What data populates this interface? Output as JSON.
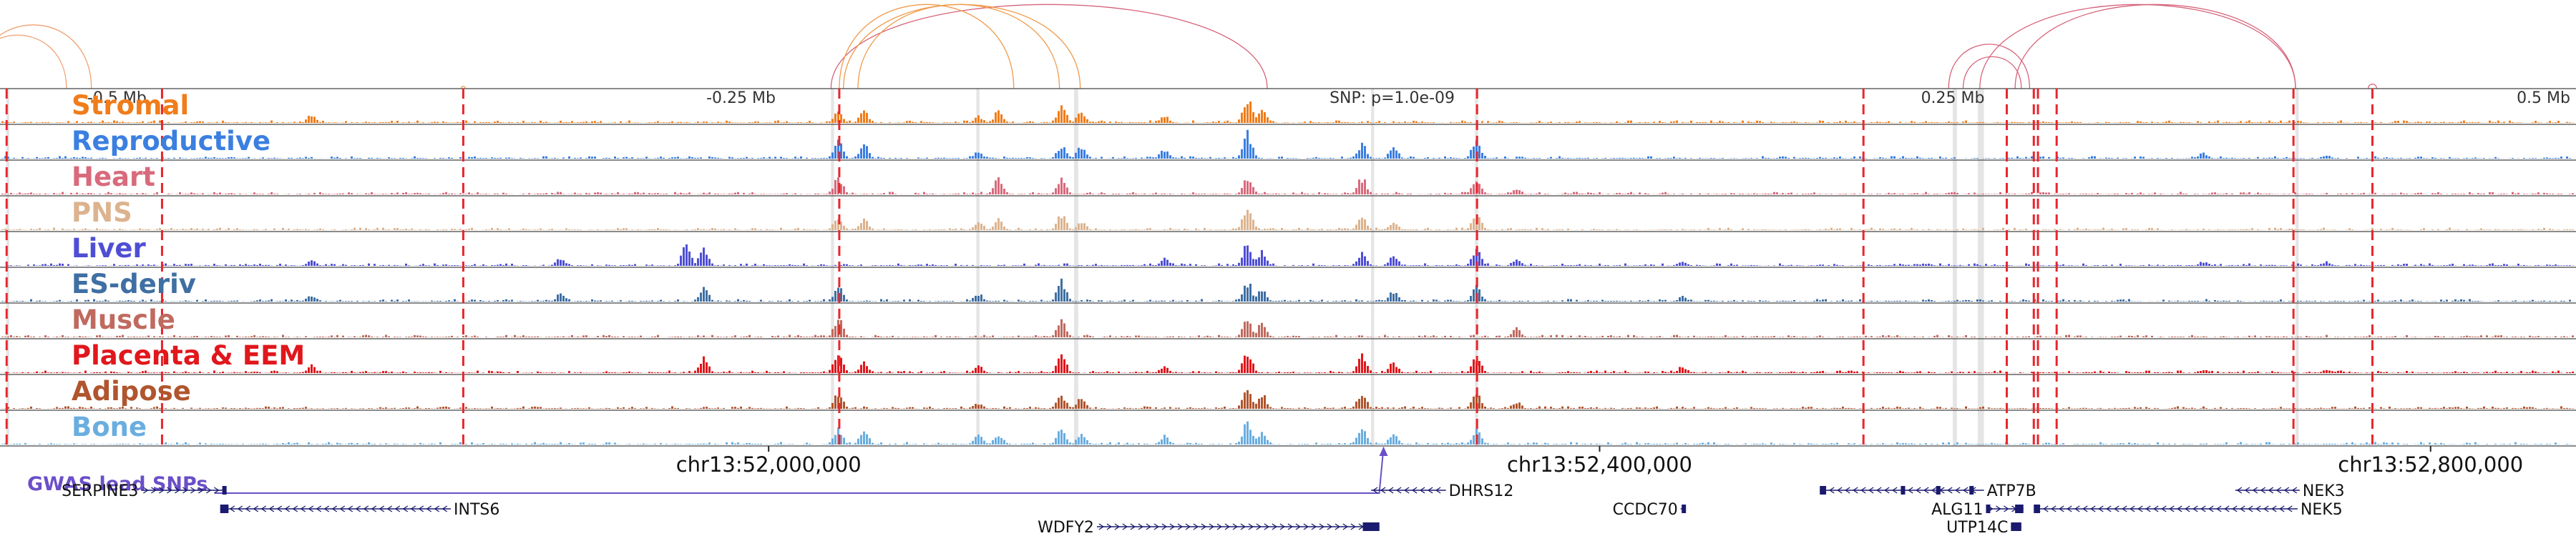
{
  "region": {
    "chrom": "chr13",
    "start": 51630000,
    "end": 52870000,
    "center": 52300000
  },
  "ruler": {
    "ticks": [
      {
        "pos": 51672000,
        "label": "-0.5 Mb",
        "anchor": "start"
      },
      {
        "pos": 51970000,
        "label": "-0.25 Mb",
        "anchor": "start"
      },
      {
        "pos": 52270000,
        "label": "SNP: p=1.0e-09",
        "anchor": "start"
      },
      {
        "pos": 52570000,
        "label": "0.25 Mb",
        "anchor": "middle"
      },
      {
        "pos": 52868000,
        "label": "0.5 Mb",
        "anchor": "end"
      }
    ]
  },
  "colors": {
    "loop": "#d6637a",
    "snp_line": "#e8262c",
    "highlight": "#cfcfcf",
    "gene": "#1a1a6e",
    "gwas": "#6a4fc8",
    "track_border": "#444444"
  },
  "tracks": [
    {
      "name": "Stromal",
      "color": "#f07d1a"
    },
    {
      "name": "Reproductive",
      "color": "#3b7fe0"
    },
    {
      "name": "Heart",
      "color": "#d86a7c"
    },
    {
      "name": "PNS",
      "color": "#dcb38e"
    },
    {
      "name": "Liver",
      "color": "#4e4ed4"
    },
    {
      "name": "ES-deriv",
      "color": "#3f6fa3"
    },
    {
      "name": "Muscle",
      "color": "#c06a5f"
    },
    {
      "name": "Placenta & EEM",
      "color": "#e0171c"
    },
    {
      "name": "Adipose",
      "color": "#b0552e"
    },
    {
      "name": "Bone",
      "color": "#6aaee0"
    }
  ],
  "peaks": [
    {
      "pos": 51780000,
      "h": 0.35,
      "tracks": [
        0,
        4,
        5,
        7
      ]
    },
    {
      "pos": 51900000,
      "h": 0.3,
      "tracks": [
        4,
        5
      ]
    },
    {
      "pos": 51960000,
      "h": 0.95,
      "tracks": [
        4
      ]
    },
    {
      "pos": 51968000,
      "h": 0.75,
      "tracks": [
        4,
        5,
        7
      ]
    },
    {
      "pos": 52033000,
      "h": 0.8,
      "tracks": [
        0,
        1,
        2,
        3,
        5,
        6,
        7,
        8,
        9
      ]
    },
    {
      "pos": 52045000,
      "h": 0.6,
      "tracks": [
        0,
        1,
        3,
        7,
        9
      ]
    },
    {
      "pos": 52100000,
      "h": 0.4,
      "tracks": [
        0,
        1,
        3,
        5,
        7,
        8,
        9
      ]
    },
    {
      "pos": 52110000,
      "h": 0.7,
      "tracks": [
        0,
        2,
        3,
        9
      ]
    },
    {
      "pos": 52140000,
      "h": 0.9,
      "tracks": [
        0,
        1,
        2,
        3,
        5,
        6,
        7,
        8,
        9
      ]
    },
    {
      "pos": 52150000,
      "h": 0.5,
      "tracks": [
        0,
        1,
        3,
        8,
        9
      ]
    },
    {
      "pos": 52190000,
      "h": 0.4,
      "tracks": [
        0,
        1,
        4,
        7,
        9
      ]
    },
    {
      "pos": 52230000,
      "h": 1.0,
      "tracks": [
        0,
        1,
        2,
        3,
        4,
        5,
        6,
        7,
        8,
        9
      ]
    },
    {
      "pos": 52237000,
      "h": 0.7,
      "tracks": [
        0,
        4,
        5,
        6,
        8,
        9
      ]
    },
    {
      "pos": 52285000,
      "h": 0.8,
      "tracks": [
        1,
        2,
        3,
        4,
        7,
        8,
        9
      ]
    },
    {
      "pos": 52300000,
      "h": 0.5,
      "tracks": [
        1,
        3,
        4,
        5,
        7,
        9
      ]
    },
    {
      "pos": 52340000,
      "h": 0.9,
      "tracks": [
        1,
        2,
        3,
        4,
        5,
        7,
        8,
        9
      ]
    },
    {
      "pos": 52360000,
      "h": 0.35,
      "tracks": [
        2,
        4,
        6,
        8
      ]
    },
    {
      "pos": 52440000,
      "h": 0.3,
      "tracks": [
        4,
        5,
        7
      ]
    },
    {
      "pos": 52690000,
      "h": 0.25,
      "tracks": [
        1,
        4,
        7
      ]
    },
    {
      "pos": 52750000,
      "h": 0.25,
      "tracks": [
        1,
        4,
        7
      ]
    }
  ],
  "highlight_regions": [
    {
      "start": 51633000,
      "end": 51634500
    },
    {
      "start": 52030000,
      "end": 52031500
    },
    {
      "start": 52100000,
      "end": 52101500
    },
    {
      "start": 52147000,
      "end": 52149000
    },
    {
      "start": 52290000,
      "end": 52291500
    },
    {
      "start": 52340000,
      "end": 52341500
    },
    {
      "start": 52570000,
      "end": 52572000
    },
    {
      "start": 52582000,
      "end": 52585000
    },
    {
      "start": 52735000,
      "end": 52736500
    }
  ],
  "snp_lines": [
    51633200,
    51708000,
    51853000,
    52034000,
    52341000,
    52527000,
    52596000,
    52609000,
    52611000,
    52620000,
    52734000,
    52772000
  ],
  "loops": [
    {
      "a": 51615000,
      "b": 51662000
    },
    {
      "a": 51618000,
      "b": 51674000
    },
    {
      "a": 51852000,
      "b": 51854000
    },
    {
      "a": 52030000,
      "b": 52240000
    },
    {
      "a": 52034000,
      "b": 52118000
    },
    {
      "a": 52036000,
      "b": 52150000
    },
    {
      "a": 52043000,
      "b": 52140000
    },
    {
      "a": 52568000,
      "b": 52607000
    },
    {
      "a": 52575000,
      "b": 52603000
    },
    {
      "a": 52583000,
      "b": 52735000
    },
    {
      "a": 52600000,
      "b": 52735000
    },
    {
      "a": 52770000,
      "b": 52774000
    }
  ],
  "genome_axis": {
    "ticks": [
      {
        "pos": 52000000,
        "label": "chr13:52,000,000"
      },
      {
        "pos": 52400000,
        "label": "chr13:52,400,000"
      },
      {
        "pos": 52800000,
        "label": "chr13:52,800,000"
      }
    ]
  },
  "gwas": {
    "label": "GWAS lead SNPs",
    "snps": [
      52296000
    ]
  },
  "genes": [
    {
      "name": "SERPINE3",
      "start": 51698000,
      "end": 51738000,
      "strand": "+",
      "row": 0,
      "label_side": "left",
      "blocks": [
        [
          51737000,
          51738000
        ]
      ]
    },
    {
      "name": "INTS6",
      "start": 51736000,
      "end": 51847000,
      "strand": "-",
      "row": 1,
      "label_side": "right",
      "blocks": [
        [
          51736000,
          51740000
        ]
      ]
    },
    {
      "name": "WDFY2",
      "start": 52158000,
      "end": 52294000,
      "strand": "+",
      "row": 2,
      "label_side": "left",
      "blocks": [
        [
          52286000,
          52294000
        ]
      ]
    },
    {
      "name": "DHRS12",
      "start": 52290000,
      "end": 52326000,
      "strand": "-",
      "row": 0,
      "label_side": "right",
      "blocks": []
    },
    {
      "name": "CCDC70",
      "start": 52439000,
      "end": 52441000,
      "strand": "+",
      "row": 1,
      "label_side": "left",
      "blocks": [
        [
          52439500,
          52441000
        ]
      ]
    },
    {
      "name": "ATP7B",
      "start": 52506000,
      "end": 52585000,
      "strand": "-",
      "row": 0,
      "label_side": "right",
      "blocks": [
        [
          52506000,
          52509000
        ],
        [
          52545000,
          52546000
        ],
        [
          52562000,
          52563000
        ],
        [
          52578000,
          52579000
        ]
      ]
    },
    {
      "name": "ALG11",
      "start": 52586000,
      "end": 52604000,
      "strand": "+",
      "row": 1,
      "label_side": "left",
      "blocks": [
        [
          52586000,
          52588000
        ],
        [
          52600000,
          52604000
        ]
      ]
    },
    {
      "name": "UTP14C",
      "start": 52598000,
      "end": 52603000,
      "strand": "+",
      "row": 2,
      "label_side": "left",
      "blocks": [
        [
          52598000,
          52603000
        ]
      ]
    },
    {
      "name": "NEK3",
      "start": 52706000,
      "end": 52737000,
      "strand": "-",
      "row": 0,
      "label_side": "right",
      "blocks": []
    },
    {
      "name": "NEK5",
      "start": 52609000,
      "end": 52736000,
      "strand": "-",
      "row": 1,
      "label_side": "right",
      "blocks": [
        [
          52609000,
          52612000
        ]
      ]
    }
  ]
}
